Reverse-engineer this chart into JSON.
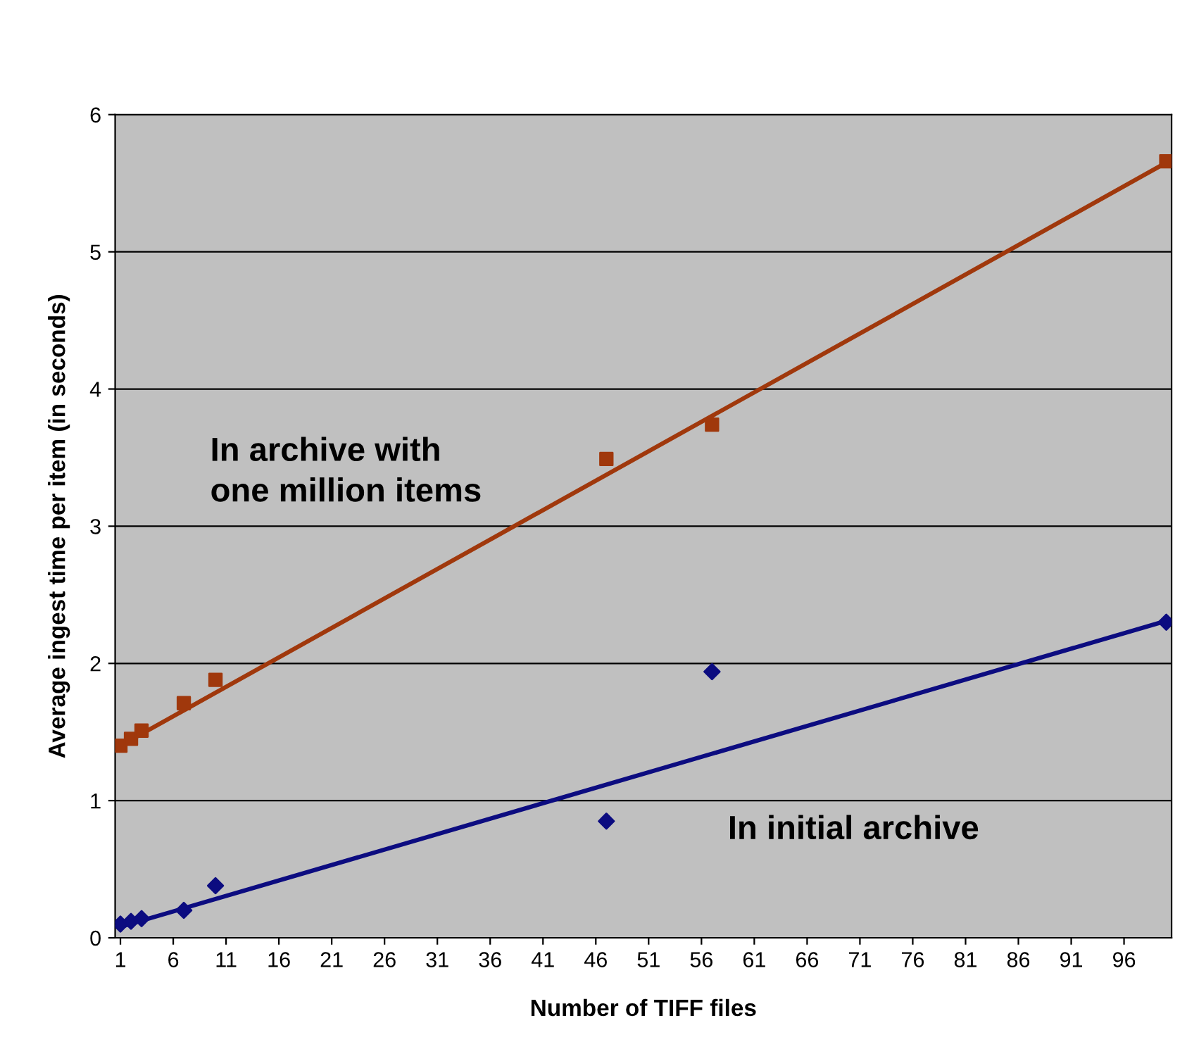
{
  "chart_data": {
    "type": "scatter",
    "xlabel": "Number of TIFF files",
    "ylabel": "Average ingest time per item (in seconds)",
    "xlim": [
      0.5,
      100.5
    ],
    "xticks": [
      1,
      6,
      11,
      16,
      21,
      26,
      31,
      36,
      41,
      46,
      51,
      56,
      61,
      66,
      71,
      76,
      81,
      86,
      91,
      96
    ],
    "ylim": [
      0,
      6
    ],
    "yticks": [
      0,
      1,
      2,
      3,
      4,
      5,
      6
    ],
    "grid": "y",
    "legend": false,
    "series": [
      {
        "marker": "square",
        "color": "#a0380c",
        "x": [
          1,
          2,
          3,
          7,
          10,
          47,
          57,
          100
        ],
        "values": [
          1.4,
          1.45,
          1.51,
          1.71,
          1.88,
          3.49,
          3.74,
          5.66
        ]
      },
      {
        "marker": "diamond",
        "color": "#0c0c80",
        "x": [
          1,
          2,
          3,
          7,
          10,
          47,
          57,
          100
        ],
        "values": [
          0.1,
          0.12,
          0.14,
          0.2,
          0.38,
          0.85,
          1.94,
          2.3
        ]
      },
      {
        "type": "line",
        "marker": "none",
        "color": "#a0380c",
        "x": [
          1,
          100
        ],
        "values": [
          1.4,
          5.65
        ]
      },
      {
        "type": "line",
        "marker": "none",
        "color": "#0c0c80",
        "x": [
          1,
          100
        ],
        "values": [
          0.08,
          2.31
        ]
      }
    ],
    "annotations": [
      "In archive with\none million items",
      "In initial archive"
    ]
  }
}
